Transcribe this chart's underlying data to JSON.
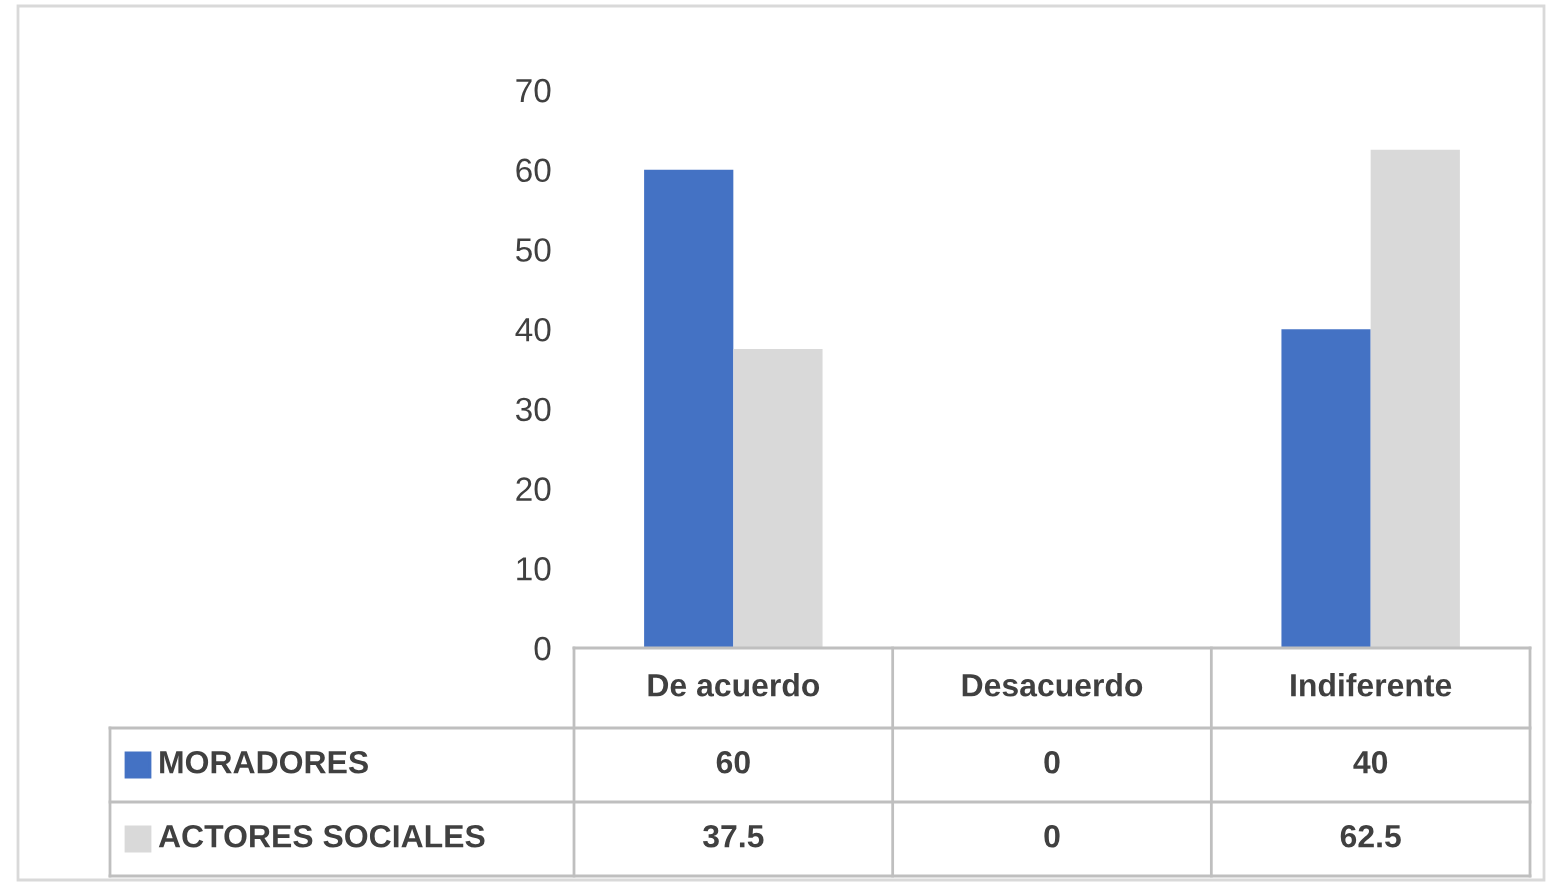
{
  "chart_data": {
    "type": "bar",
    "categories": [
      "De acuerdo",
      "Desacuerdo",
      "Indiferente"
    ],
    "series": [
      {
        "name": "MORADORES",
        "color": "#4472c4",
        "values": [
          60,
          0,
          40
        ]
      },
      {
        "name": "ACTORES SOCIALES",
        "color": "#d9d9d9",
        "values": [
          37.5,
          0,
          62.5
        ]
      }
    ],
    "ylim": [
      0,
      70
    ],
    "yticks": [
      0,
      10,
      20,
      30,
      40,
      50,
      60,
      70
    ],
    "grid": false,
    "legend": "bottom",
    "data_labels": true
  }
}
